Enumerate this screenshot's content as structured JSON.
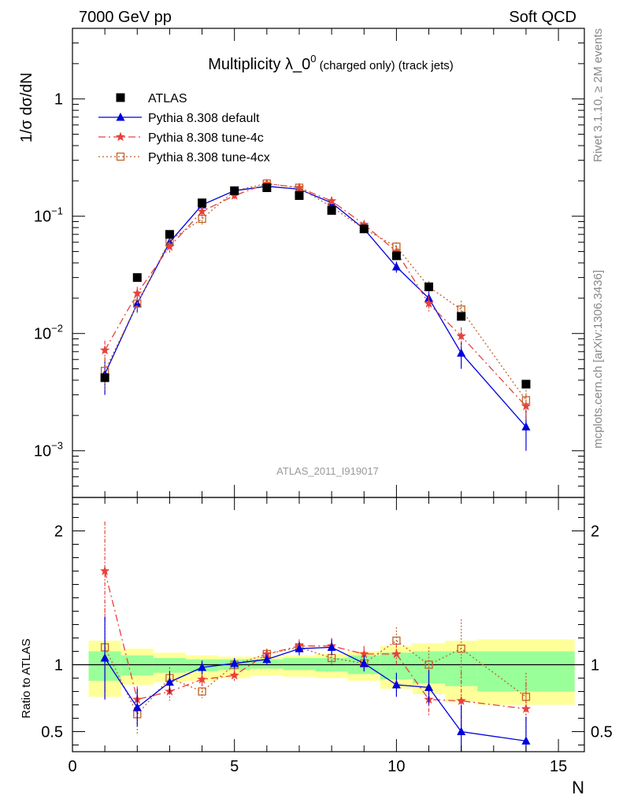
{
  "header": {
    "left": "7000 GeV pp",
    "right": "Soft QCD"
  },
  "side_labels": {
    "top": "Rivet 3.1.10, ≥ 2M events",
    "bottom": "mcplots.cern.ch [arXiv:1306.3436]"
  },
  "watermark": "ATLAS_2011_I919017",
  "colors": {
    "atlas": "#000000",
    "default": "#0000dd",
    "tune4c": "#e8413c",
    "tune4cx": "#c0622a",
    "band_outer": "#ffff99",
    "band_inner": "#99ff99"
  },
  "chart_data": [
    {
      "type": "scatter",
      "title": {
        "main": "Multiplicity λ_0",
        "sup": "0",
        "rest": " (charged only) (track jets)"
      },
      "ylabel": "1/σ dσ/dN",
      "xlabel": "",
      "yscale": "log",
      "ylim": [
        0.0004,
        4
      ],
      "xlim": [
        0,
        15.8
      ],
      "yticks": [
        {
          "v": 0.001,
          "base": "10",
          "exp": "−3"
        },
        {
          "v": 0.01,
          "base": "10",
          "exp": "−2"
        },
        {
          "v": 0.1,
          "base": "10",
          "exp": "−1"
        },
        {
          "v": 1,
          "base": "1",
          "exp": ""
        }
      ],
      "legend_position": "top-left",
      "series": [
        {
          "name": "ATLAS",
          "key": "atlas",
          "marker": "square",
          "line": "none",
          "x": [
            1,
            2,
            3,
            4,
            5,
            6,
            7,
            8,
            9,
            10,
            11,
            12,
            14
          ],
          "y": [
            0.0042,
            0.03,
            0.07,
            0.13,
            0.165,
            0.175,
            0.15,
            0.112,
            0.078,
            0.046,
            0.025,
            0.014,
            0.0037
          ],
          "err": [
            0,
            0,
            0,
            0,
            0,
            0,
            0,
            0,
            0,
            0,
            0,
            0,
            0
          ]
        },
        {
          "name": "Pythia 8.308 default",
          "key": "default",
          "marker": "triangle",
          "line": "solid",
          "x": [
            1,
            2,
            3,
            4,
            5,
            6,
            7,
            8,
            9,
            10,
            11,
            12,
            14
          ],
          "y": [
            0.0045,
            0.018,
            0.06,
            0.125,
            0.165,
            0.18,
            0.17,
            0.13,
            0.078,
            0.037,
            0.02,
            0.0068,
            0.0016
          ],
          "err": [
            0.0015,
            0.003,
            0.006,
            0.01,
            0.01,
            0.01,
            0.01,
            0.01,
            0.006,
            0.004,
            0.003,
            0.0018,
            0.0006
          ]
        },
        {
          "name": "Pythia 8.308 tune-4c",
          "key": "tune4c",
          "marker": "star",
          "line": "dashdot",
          "x": [
            1,
            2,
            3,
            4,
            5,
            6,
            7,
            8,
            9,
            10,
            11,
            12,
            14
          ],
          "y": [
            0.0072,
            0.022,
            0.055,
            0.11,
            0.15,
            0.19,
            0.175,
            0.135,
            0.085,
            0.05,
            0.018,
            0.0095,
            0.0024
          ],
          "err": [
            0.0015,
            0.003,
            0.006,
            0.01,
            0.01,
            0.01,
            0.01,
            0.01,
            0.006,
            0.005,
            0.003,
            0.0018,
            0.0006
          ]
        },
        {
          "name": "Pythia 8.308 tune-4cx",
          "key": "tune4cx",
          "marker": "opensquare",
          "line": "dotted",
          "x": [
            1,
            2,
            3,
            4,
            5,
            6,
            7,
            8,
            9,
            10,
            11,
            12,
            14
          ],
          "y": [
            0.0048,
            0.018,
            0.062,
            0.095,
            0.165,
            0.19,
            0.175,
            0.12,
            0.078,
            0.055,
            0.025,
            0.016,
            0.0027
          ],
          "err": [
            0.0015,
            0.003,
            0.006,
            0.01,
            0.01,
            0.01,
            0.01,
            0.01,
            0.006,
            0.005,
            0.003,
            0.003,
            0.0008
          ]
        }
      ]
    },
    {
      "type": "scatter",
      "ylabel": "Ratio to ATLAS",
      "xlabel": "N",
      "yscale": "linear",
      "ylim": [
        0.35,
        2.25
      ],
      "xlim": [
        0,
        15.8
      ],
      "xticks": [
        0,
        5,
        10,
        15
      ],
      "yticks": [
        0.5,
        1,
        2
      ],
      "bands": {
        "edges": [
          0.5,
          1.5,
          2.5,
          3.5,
          4.5,
          5.5,
          6.5,
          7.5,
          8.5,
          9.5,
          10.5,
          11.5,
          12.5,
          15.5
        ],
        "outer_lo": [
          0.76,
          0.85,
          0.87,
          0.88,
          0.9,
          0.92,
          0.91,
          0.9,
          0.88,
          0.82,
          0.78,
          0.72,
          0.7
        ],
        "outer_hi": [
          1.18,
          1.12,
          1.09,
          1.07,
          1.06,
          1.06,
          1.07,
          1.08,
          1.1,
          1.14,
          1.16,
          1.18,
          1.19
        ],
        "inner_lo": [
          0.88,
          0.92,
          0.94,
          0.95,
          0.96,
          0.97,
          0.96,
          0.95,
          0.93,
          0.89,
          0.86,
          0.84,
          0.8
        ],
        "inner_hi": [
          1.1,
          1.07,
          1.05,
          1.04,
          1.04,
          1.04,
          1.05,
          1.05,
          1.07,
          1.09,
          1.1,
          1.1,
          1.1
        ]
      },
      "series": [
        {
          "key": "default",
          "marker": "triangle",
          "line": "solid",
          "x": [
            1,
            2,
            3,
            4,
            5,
            6,
            7,
            8,
            9,
            10,
            11,
            12,
            14
          ],
          "y": [
            1.05,
            0.68,
            0.87,
            0.98,
            1.01,
            1.04,
            1.12,
            1.13,
            1.01,
            0.85,
            0.83,
            0.5,
            0.43
          ],
          "err": [
            0.31,
            0.14,
            0.08,
            0.05,
            0.04,
            0.04,
            0.05,
            0.06,
            0.06,
            0.09,
            0.13,
            0.2,
            0.18
          ]
        },
        {
          "key": "tune4c",
          "marker": "star",
          "line": "dashdot",
          "x": [
            1,
            2,
            3,
            4,
            5,
            6,
            7,
            8,
            9,
            10,
            11,
            12,
            14
          ],
          "y": [
            1.7,
            0.74,
            0.8,
            0.89,
            0.92,
            1.08,
            1.14,
            1.14,
            1.08,
            1.08,
            0.74,
            0.73,
            0.67
          ],
          "err": [
            0.37,
            0.1,
            0.07,
            0.05,
            0.04,
            0.04,
            0.05,
            0.06,
            0.06,
            0.08,
            0.13,
            0.22,
            0.2
          ]
        },
        {
          "key": "tune4cx",
          "marker": "opensquare",
          "line": "dotted",
          "x": [
            1,
            2,
            3,
            4,
            5,
            6,
            7,
            8,
            9,
            10,
            11,
            12,
            14
          ],
          "y": [
            1.13,
            0.63,
            0.9,
            0.8,
            1.0,
            1.08,
            1.13,
            1.05,
            1.01,
            1.18,
            1.0,
            1.12,
            0.76
          ],
          "err": [
            0.34,
            0.15,
            0.08,
            0.05,
            0.04,
            0.04,
            0.05,
            0.06,
            0.06,
            0.1,
            0.13,
            0.22,
            0.18
          ]
        }
      ]
    }
  ]
}
